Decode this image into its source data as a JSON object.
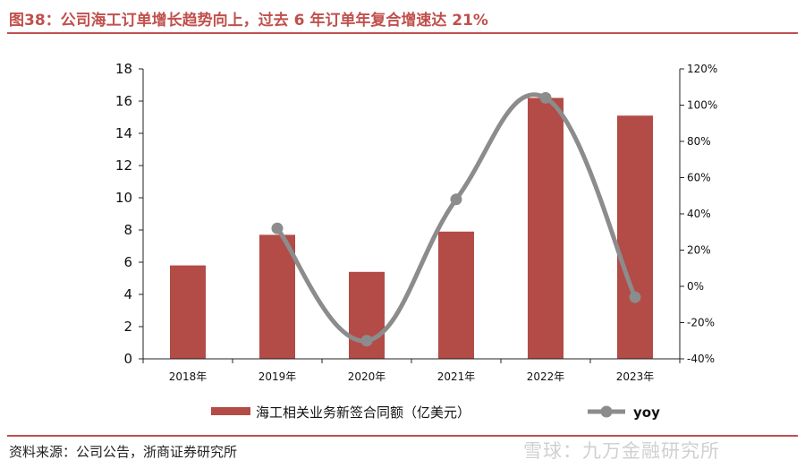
{
  "figure": {
    "title": "图38：公司海工订单增长趋势向上，过去 6 年订单年复合增速达 21%",
    "source": "资料来源：公司公告，浙商证券研究所",
    "watermark": "雪球：九万金融研究所"
  },
  "colors": {
    "bar": "#b34b47",
    "line": "#8c8c8c",
    "accent": "#c0504d"
  },
  "chart_data": {
    "type": "bar",
    "categories": [
      "2018年",
      "2019年",
      "2020年",
      "2021年",
      "2022年",
      "2023年"
    ],
    "series": [
      {
        "name": "海工相关业务新签合同额（亿美元）",
        "type": "bar",
        "axis": "left",
        "values": [
          5.8,
          7.7,
          5.4,
          7.9,
          16.2,
          15.1
        ]
      },
      {
        "name": "yoy",
        "type": "line",
        "axis": "right",
        "values": [
          null,
          0.32,
          -0.3,
          0.48,
          1.04,
          -0.06
        ]
      }
    ],
    "y_left": {
      "min": 0,
      "max": 18,
      "ticks": [
        "0",
        "2",
        "4",
        "6",
        "8",
        "10",
        "12",
        "14",
        "16",
        "18"
      ]
    },
    "y_right": {
      "min": -0.4,
      "max": 1.2,
      "ticks": [
        "-40%",
        "-20%",
        "0%",
        "20%",
        "40%",
        "60%",
        "80%",
        "100%",
        "120%"
      ]
    },
    "legend_position": "bottom",
    "grid": false
  }
}
